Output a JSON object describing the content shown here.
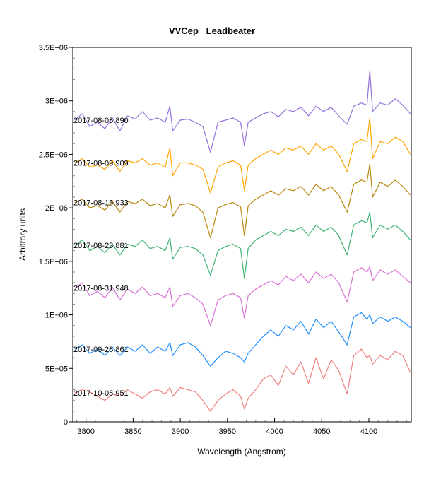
{
  "chart_data": {
    "type": "line",
    "title": "VVCep   Leadbeater",
    "xlabel": "Wavelength (Angstrom)",
    "ylabel": "Arbitrary units",
    "xlim": [
      3786,
      4145
    ],
    "ylim": [
      0,
      3500000
    ],
    "grid": false,
    "legend": "inline labels at left of each series",
    "x_ticks": [
      3800,
      3850,
      3900,
      3950,
      4000,
      4050,
      4100
    ],
    "x_tick_labels": [
      "3800",
      "3850",
      "3900",
      "3950",
      "4000",
      "4050",
      "4100"
    ],
    "y_ticks": [
      0,
      500000,
      1000000,
      1500000,
      2000000,
      2500000,
      3000000,
      3500000
    ],
    "y_tick_labels": [
      "0",
      "5E+05",
      "1E+06",
      "1.5E+06",
      "2E+06",
      "2.5E+06",
      "3E+06",
      "3.5E+06"
    ],
    "x": [
      3788,
      3796,
      3804,
      3812,
      3820,
      3828,
      3836,
      3844,
      3852,
      3860,
      3868,
      3876,
      3884,
      3889,
      3892,
      3900,
      3908,
      3916,
      3924,
      3932,
      3940,
      3948,
      3956,
      3964,
      3968,
      3972,
      3980,
      3988,
      3996,
      4004,
      4012,
      4020,
      4028,
      4036,
      4044,
      4052,
      4060,
      4068,
      4077,
      4084,
      4092,
      4098,
      4101,
      4104,
      4112,
      4120,
      4128,
      4136,
      4144
    ],
    "series": [
      {
        "name": "2017-08-05.890",
        "color": "#9370DB",
        "values": [
          2820000.0,
          2880000.0,
          2760000.0,
          2800000.0,
          2740000.0,
          2840000.0,
          2720000.0,
          2860000.0,
          2830000.0,
          2900000.0,
          2820000.0,
          2840000.0,
          2800000.0,
          2950000.0,
          2720000.0,
          2820000.0,
          2830000.0,
          2800000.0,
          2760000.0,
          2520000.0,
          2800000.0,
          2820000.0,
          2840000.0,
          2800000.0,
          2580000.0,
          2800000.0,
          2840000.0,
          2880000.0,
          2900000.0,
          2850000.0,
          2920000.0,
          2900000.0,
          2940000.0,
          2860000.0,
          2950000.0,
          2900000.0,
          2940000.0,
          2860000.0,
          2780000.0,
          2950000.0,
          2980000.0,
          2960000.0,
          3280000.0,
          2900000.0,
          2980000.0,
          2960000.0,
          3020000.0,
          2960000.0,
          2880000.0
        ]
      },
      {
        "name": "2017-08-09.909",
        "color": "#FFA500",
        "values": [
          2420000.0,
          2460000.0,
          2380000.0,
          2400000.0,
          2360000.0,
          2440000.0,
          2340000.0,
          2440000.0,
          2420000.0,
          2460000.0,
          2400000.0,
          2420000.0,
          2380000.0,
          2560000.0,
          2300000.0,
          2420000.0,
          2420000.0,
          2400000.0,
          2360000.0,
          2140000.0,
          2380000.0,
          2420000.0,
          2440000.0,
          2400000.0,
          2160000.0,
          2400000.0,
          2460000.0,
          2500000.0,
          2540000.0,
          2500000.0,
          2560000.0,
          2540000.0,
          2580000.0,
          2500000.0,
          2600000.0,
          2540000.0,
          2580000.0,
          2500000.0,
          2340000.0,
          2600000.0,
          2640000.0,
          2620000.0,
          2840000.0,
          2460000.0,
          2620000.0,
          2600000.0,
          2660000.0,
          2620000.0,
          2500000.0
        ]
      },
      {
        "name": "2017-08-15.933",
        "color": "#B8860B",
        "values": [
          2050000.0,
          2080000.0,
          2000000.0,
          2020000.0,
          1980000.0,
          2060000.0,
          1960000.0,
          2060000.0,
          2040000.0,
          2080000.0,
          2020000.0,
          2040000.0,
          2000000.0,
          2120000.0,
          1920000.0,
          2030000.0,
          2040000.0,
          2020000.0,
          1960000.0,
          1720000.0,
          2000000.0,
          2030000.0,
          2050000.0,
          2010000.0,
          1740000.0,
          2020000.0,
          2080000.0,
          2120000.0,
          2160000.0,
          2120000.0,
          2180000.0,
          2160000.0,
          2200000.0,
          2120000.0,
          2220000.0,
          2160000.0,
          2200000.0,
          2120000.0,
          1960000.0,
          2220000.0,
          2260000.0,
          2240000.0,
          2410000.0,
          2100000.0,
          2240000.0,
          2200000.0,
          2260000.0,
          2200000.0,
          2120000.0
        ]
      },
      {
        "name": "2017-08-23.881",
        "color": "#3CB371",
        "values": [
          1650000.0,
          1700000.0,
          1600000.0,
          1640000.0,
          1580000.0,
          1660000.0,
          1560000.0,
          1660000.0,
          1640000.0,
          1700000.0,
          1620000.0,
          1640000.0,
          1600000.0,
          1720000.0,
          1520000.0,
          1630000.0,
          1640000.0,
          1620000.0,
          1560000.0,
          1370000.0,
          1600000.0,
          1640000.0,
          1660000.0,
          1620000.0,
          1340000.0,
          1620000.0,
          1700000.0,
          1740000.0,
          1780000.0,
          1740000.0,
          1800000.0,
          1780000.0,
          1820000.0,
          1740000.0,
          1840000.0,
          1780000.0,
          1820000.0,
          1740000.0,
          1560000.0,
          1840000.0,
          1880000.0,
          1860000.0,
          1960000.0,
          1720000.0,
          1840000.0,
          1800000.0,
          1840000.0,
          1780000.0,
          1700000.0
        ]
      },
      {
        "name": "2017-08-31.948",
        "color": "#DA70D6",
        "values": [
          1250000.0,
          1300000.0,
          1180000.0,
          1220000.0,
          1160000.0,
          1260000.0,
          1140000.0,
          1240000.0,
          1200000.0,
          1260000.0,
          1180000.0,
          1200000.0,
          1160000.0,
          1260000.0,
          1080000.0,
          1180000.0,
          1200000.0,
          1160000.0,
          1100000.0,
          900000.0,
          1140000.0,
          1180000.0,
          1200000.0,
          1160000.0,
          970000.0,
          1180000.0,
          1240000.0,
          1280000.0,
          1320000.0,
          1280000.0,
          1360000.0,
          1320000.0,
          1380000.0,
          1300000.0,
          1400000.0,
          1340000.0,
          1380000.0,
          1300000.0,
          1120000.0,
          1400000.0,
          1440000.0,
          1400000.0,
          1450000.0,
          1320000.0,
          1420000.0,
          1380000.0,
          1420000.0,
          1360000.0,
          1300000.0
        ]
      },
      {
        "name": "2017-09-26.861",
        "color": "#1E90FF",
        "values": [
          680000.0,
          720000.0,
          640000.0,
          680000.0,
          620000.0,
          700000.0,
          620000.0,
          700000.0,
          660000.0,
          720000.0,
          640000.0,
          700000.0,
          660000.0,
          740000.0,
          620000.0,
          720000.0,
          740000.0,
          700000.0,
          620000.0,
          520000.0,
          600000.0,
          660000.0,
          640000.0,
          600000.0,
          560000.0,
          640000.0,
          720000.0,
          800000.0,
          860000.0,
          800000.0,
          900000.0,
          860000.0,
          940000.0,
          820000.0,
          960000.0,
          880000.0,
          940000.0,
          840000.0,
          720000.0,
          980000.0,
          1020000.0,
          960000.0,
          1000000.0,
          920000.0,
          980000.0,
          940000.0,
          980000.0,
          940000.0,
          880000.0
        ]
      },
      {
        "name": "2017-10-05.951",
        "color": "#F08080",
        "values": [
          270000.0,
          300000.0,
          280000.0,
          240000.0,
          200000.0,
          260000.0,
          240000.0,
          300000.0,
          260000.0,
          220000.0,
          280000.0,
          300000.0,
          260000.0,
          320000.0,
          240000.0,
          320000.0,
          300000.0,
          280000.0,
          200000.0,
          100000.0,
          200000.0,
          260000.0,
          300000.0,
          240000.0,
          120000.0,
          220000.0,
          300000.0,
          400000.0,
          440000.0,
          340000.0,
          520000.0,
          440000.0,
          560000.0,
          360000.0,
          600000.0,
          400000.0,
          580000.0,
          480000.0,
          260000.0,
          620000.0,
          680000.0,
          600000.0,
          620000.0,
          540000.0,
          620000.0,
          580000.0,
          660000.0,
          620000.0,
          460000.0
        ]
      }
    ]
  }
}
